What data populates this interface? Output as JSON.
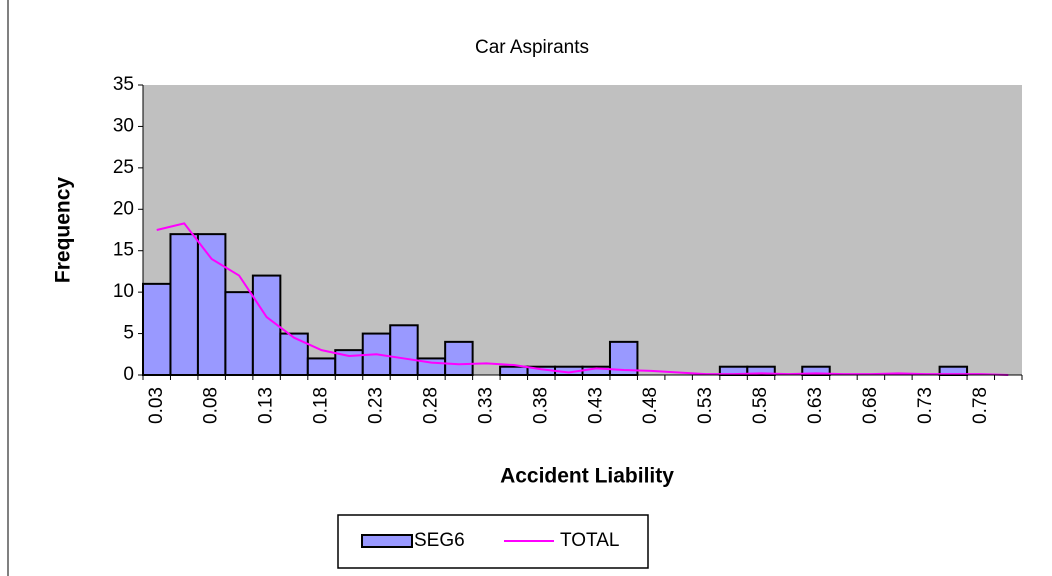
{
  "chart_data": {
    "type": "bar",
    "title": "Car Aspirants",
    "x_label": "Accident Liability",
    "y_label": "Frequency",
    "categories": [
      "0.03",
      null,
      "0.08",
      null,
      "0.13",
      null,
      "0.18",
      null,
      "0.23",
      null,
      "0.28",
      null,
      "0.33",
      null,
      "0.38",
      null,
      "0.43",
      null,
      "0.48",
      null,
      "0.53",
      null,
      "0.58",
      null,
      "0.63",
      null,
      "0.68",
      null,
      "0.73",
      null,
      "0.78",
      null
    ],
    "series": [
      {
        "name": "SEG6",
        "type": "bar",
        "color": "#9999ff",
        "values": [
          11,
          17,
          17,
          10,
          12,
          5,
          2,
          3,
          5,
          6,
          2,
          4,
          0,
          1,
          1,
          1,
          1,
          4,
          0,
          0,
          0,
          1,
          1,
          0,
          1,
          0,
          0,
          0,
          0,
          1,
          0,
          0
        ]
      },
      {
        "name": "TOTAL",
        "type": "line",
        "color": "#ff00ff",
        "values": [
          17.5,
          18.3,
          14,
          12,
          7,
          4.5,
          3,
          2.3,
          2.5,
          2,
          1.5,
          1.3,
          1.4,
          1.2,
          0.7,
          0.3,
          0.8,
          0.6,
          0.5,
          0.3,
          0.1,
          0.1,
          0.2,
          0.1,
          0.2,
          0.1,
          0.1,
          0.2,
          0.1,
          0.1,
          0.1,
          0
        ]
      }
    ],
    "ylim": [
      0,
      35
    ],
    "yticks": [
      0,
      5,
      10,
      15,
      20,
      25,
      30,
      35
    ],
    "plot_background": "#c0c0c0"
  }
}
